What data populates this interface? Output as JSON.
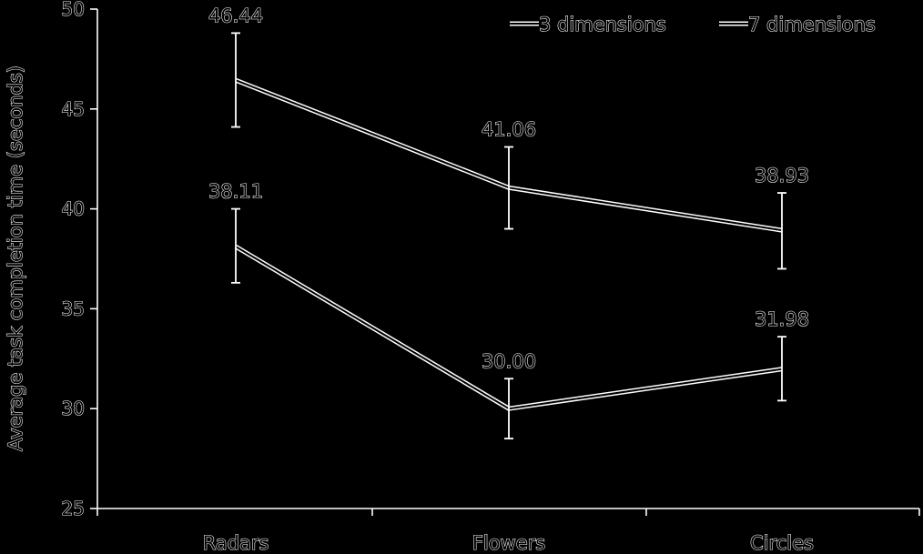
{
  "chart_data": {
    "type": "line",
    "categories": [
      "Radars",
      "Flowers",
      "Circles"
    ],
    "ylabel": "Average task completion time (seconds)",
    "xlabel": "",
    "ylim": [
      25,
      50
    ],
    "yticks": [
      25,
      30,
      35,
      40,
      45,
      50
    ],
    "ytick_labels": [
      "25",
      "30",
      "35",
      "40",
      "45",
      "50"
    ],
    "legend_position": "top-right",
    "grid": false,
    "series": [
      {
        "name": "3 dimensions",
        "values": [
          38.11,
          30.0,
          31.98
        ],
        "labels": [
          "38.11",
          "30.00",
          "31.98"
        ],
        "error_low": [
          36.3,
          28.5,
          30.4
        ],
        "error_high": [
          40.0,
          31.5,
          33.6
        ]
      },
      {
        "name": "7 dimensions",
        "values": [
          46.44,
          41.06,
          38.93
        ],
        "labels": [
          "46.44",
          "41.06",
          "38.93"
        ],
        "error_low": [
          44.1,
          39.0,
          37.0
        ],
        "error_high": [
          48.8,
          43.1,
          40.8
        ]
      }
    ]
  }
}
